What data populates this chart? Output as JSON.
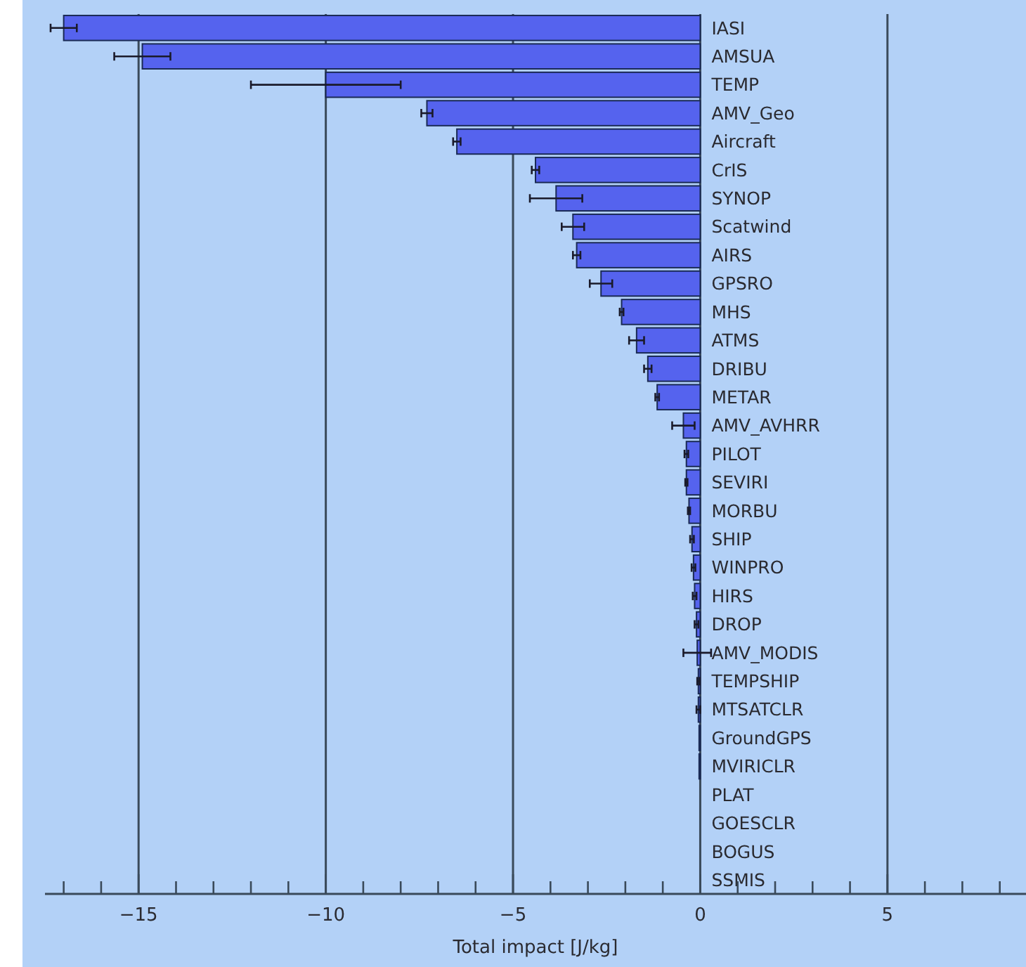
{
  "chart_data": {
    "type": "bar",
    "orientation": "horizontal",
    "xlabel": "Total impact [J/kg]",
    "categories": [
      "IASI",
      "AMSUA",
      "TEMP",
      "AMV_Geo",
      "Aircraft",
      "CrIS",
      "SYNOP",
      "Scatwind",
      "AIRS",
      "GPSRO",
      "MHS",
      "ATMS",
      "DRIBU",
      "METAR",
      "AMV_AVHRR",
      "PILOT",
      "SEVIRI",
      "MORBU",
      "SHIP",
      "WINPRO",
      "HIRS",
      "DROP",
      "AMV_MODIS",
      "TEMPSHIP",
      "MTSATCLR",
      "GroundGPS",
      "MVIRICLR",
      "PLAT",
      "GOESCLR",
      "BOGUS",
      "SSMIS"
    ],
    "values": [
      -17.0,
      -14.9,
      -10.0,
      -7.3,
      -6.5,
      -4.4,
      -3.85,
      -3.4,
      -3.3,
      -2.65,
      -2.1,
      -1.7,
      -1.4,
      -1.15,
      -0.45,
      -0.37,
      -0.37,
      -0.3,
      -0.22,
      -0.18,
      -0.15,
      -0.1,
      -0.08,
      -0.05,
      -0.05,
      -0.03,
      -0.03,
      0,
      0,
      0,
      0
    ],
    "errors": [
      0.35,
      0.75,
      2.0,
      0.15,
      0.1,
      0.1,
      0.7,
      0.3,
      0.1,
      0.3,
      0.05,
      0.2,
      0.1,
      0.05,
      0.3,
      0.05,
      0.03,
      0.03,
      0.05,
      0.05,
      0.05,
      0.05,
      0.37,
      0.03,
      0.05,
      null,
      null,
      null,
      null,
      null,
      null
    ],
    "color": "#5563ee",
    "xlim": [
      -17.5,
      8.7
    ],
    "xticks": [
      {
        "value": -17,
        "label": null
      },
      {
        "value": -16,
        "label": null
      },
      -15,
      {
        "value": -14,
        "label": null
      },
      {
        "value": -13,
        "label": null
      },
      {
        "value": -12,
        "label": null
      },
      {
        "value": -11,
        "label": null
      },
      -10,
      {
        "value": -9,
        "label": null
      },
      {
        "value": -8,
        "label": null
      },
      {
        "value": -7,
        "label": null
      },
      {
        "value": -6,
        "label": null
      },
      -5,
      {
        "value": -4,
        "label": null
      },
      {
        "value": -3,
        "label": null
      },
      {
        "value": -2,
        "label": null
      },
      {
        "value": -1,
        "label": null
      },
      0,
      {
        "value": 1,
        "label": null
      },
      {
        "value": 2,
        "label": null
      },
      {
        "value": 3,
        "label": null
      },
      {
        "value": 4,
        "label": null
      },
      5,
      {
        "value": 6,
        "label": null
      },
      {
        "value": 7,
        "label": null
      },
      {
        "value": 8,
        "label": null
      }
    ],
    "grid": "x"
  }
}
